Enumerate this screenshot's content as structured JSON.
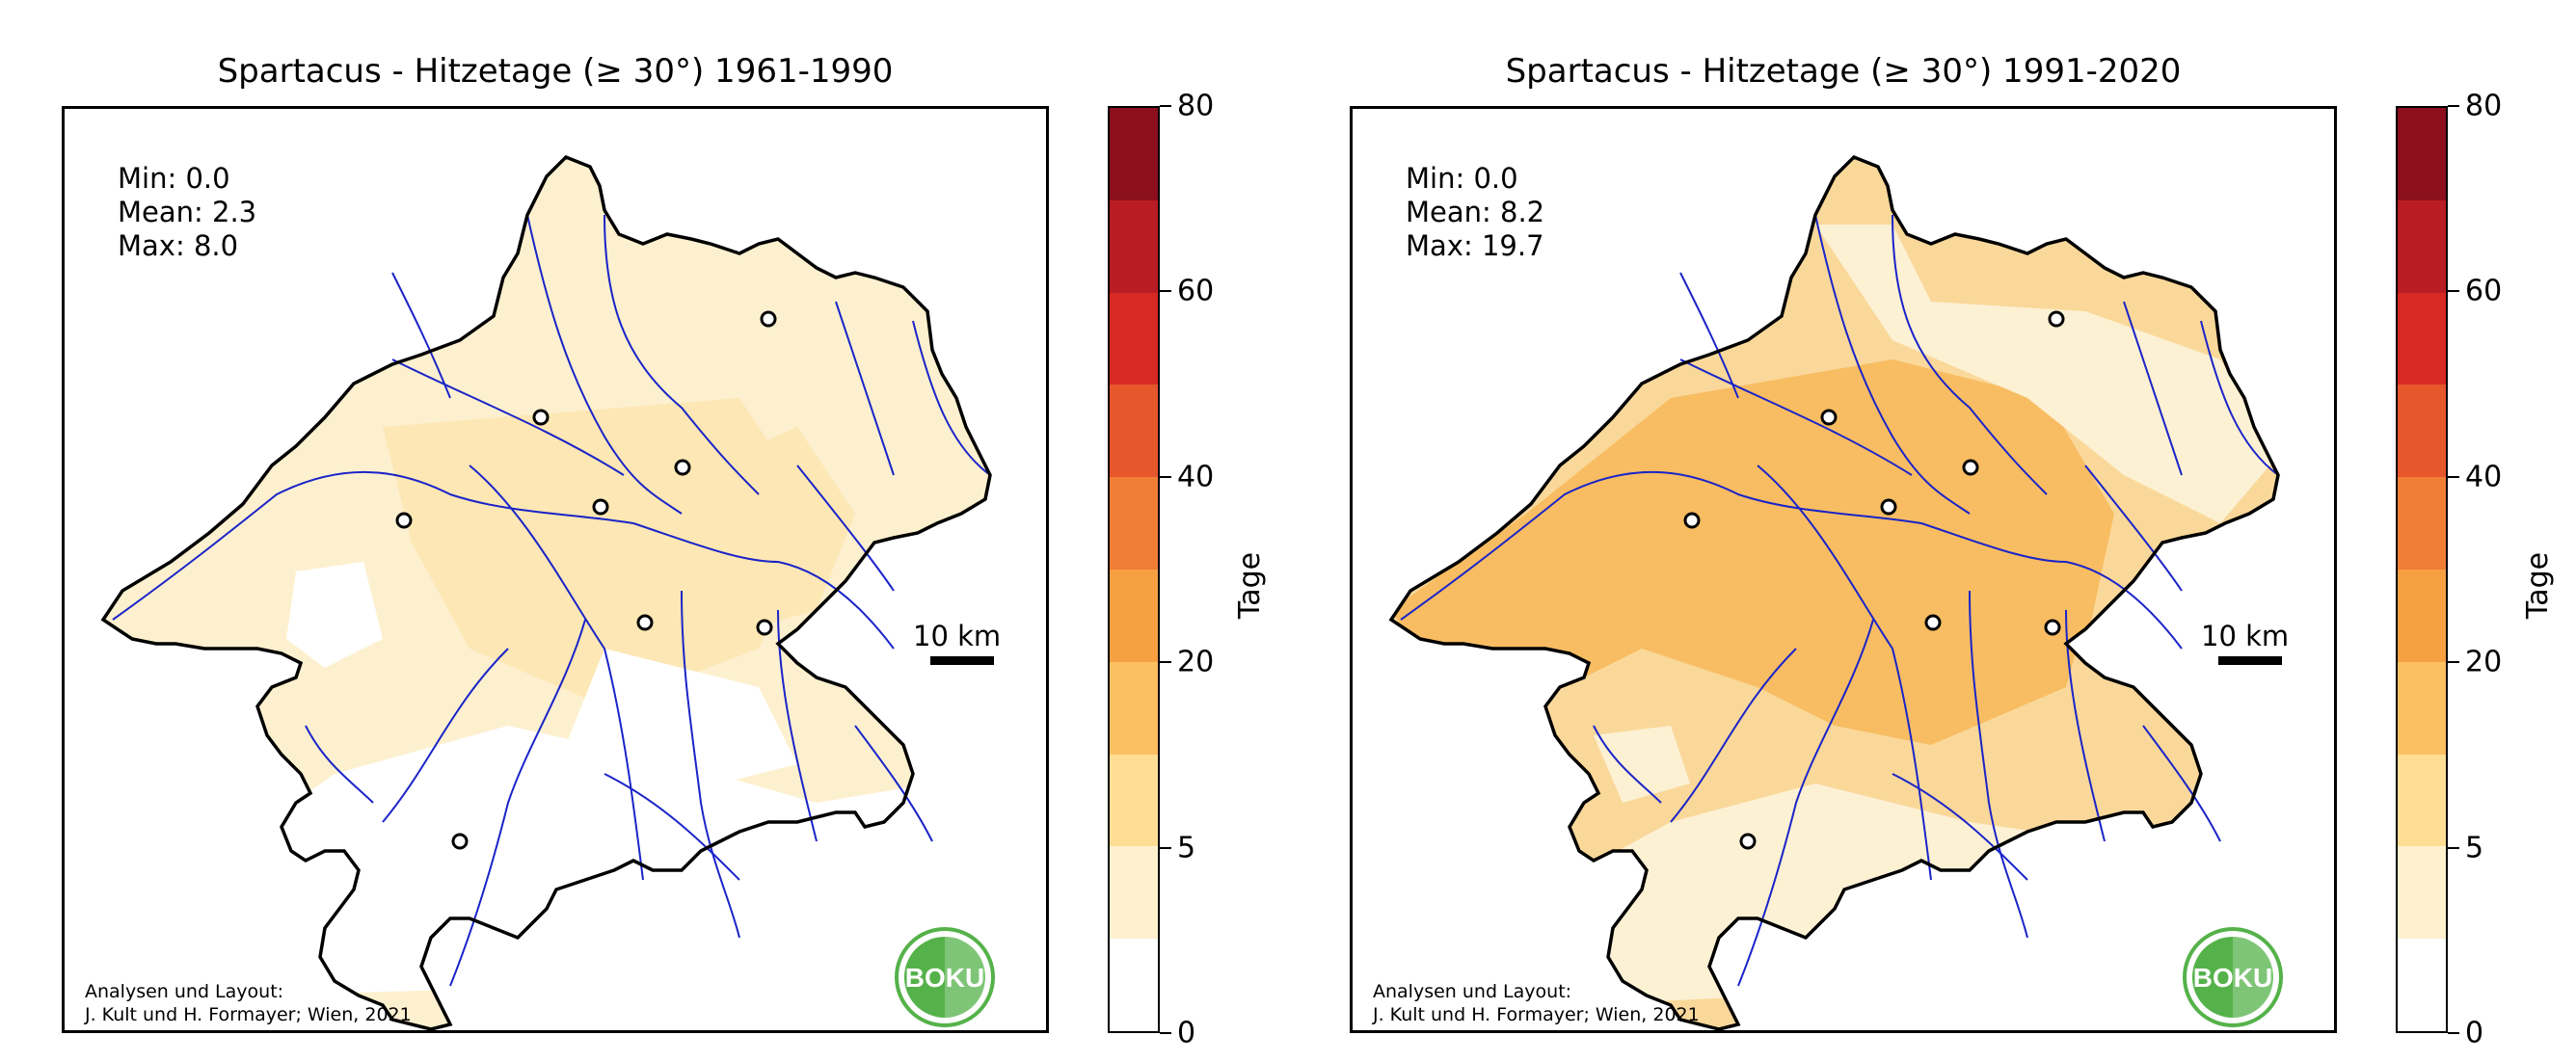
{
  "colorbar": {
    "unit_label": "Tage",
    "tick_labels": [
      "0",
      "5",
      "20",
      "40",
      "60",
      "80"
    ],
    "class_colors": [
      "#ffffff",
      "#fff1cf",
      "#fede95",
      "#fbc061",
      "#f7a042",
      "#f27d35",
      "#e6572c",
      "#d82a24",
      "#b91c22",
      "#8b0f1c"
    ]
  },
  "scale_bar_label": "10 km",
  "credit": {
    "line1": "Analysen und Layout:",
    "line2": "J. Kult und H. Formayer; Wien, 2021"
  },
  "logo_text": "BOKU",
  "colors": {
    "river": "#1a24c8",
    "border": "#000000",
    "logo_green": "#55b24a"
  },
  "panels": [
    {
      "title": "Spartacus - Hitzetage (≥ 30°) 1961-1990",
      "stats": {
        "min": "Min: 0.0",
        "mean": "Mean: 2.3",
        "max": "Max: 8.0"
      },
      "fill_colors": {
        "base": "#fdf0cf",
        "high": "#fde7b4",
        "low": "#ffffff"
      }
    },
    {
      "title": "Spartacus - Hitzetage (≥ 30°) 1991-2020",
      "stats": {
        "min": "Min: 0.0",
        "mean": "Mean: 8.2",
        "max": "Max: 19.7"
      },
      "fill_colors": {
        "base": "#fad89a",
        "high": "#f8bd62",
        "low": "#fdf1d4"
      }
    }
  ]
}
